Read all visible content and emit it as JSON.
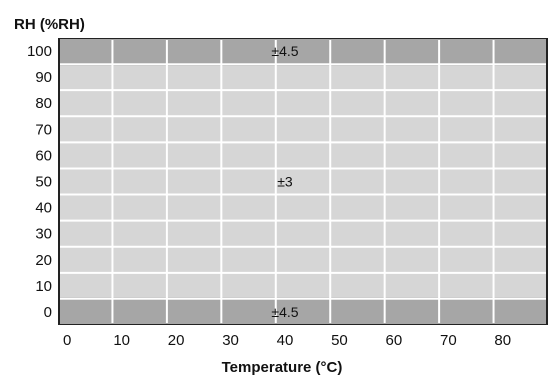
{
  "chart_data": {
    "type": "heatmap",
    "title": "",
    "ylabel": "RH (%RH)",
    "xlabel": "Temperature (°C)",
    "x_ticks": [
      "0",
      "10",
      "20",
      "30",
      "40",
      "50",
      "60",
      "70",
      "80"
    ],
    "y_ticks": [
      "100",
      "90",
      "80",
      "70",
      "60",
      "50",
      "40",
      "30",
      "20",
      "10",
      "0"
    ],
    "xlim": [
      0,
      80
    ],
    "ylim": [
      0,
      100
    ],
    "grid": true,
    "regions": [
      {
        "rh_range": [
          95,
          100
        ],
        "temp_range": [
          0,
          80
        ],
        "accuracy": "±4.5",
        "color": "#a6a6a6"
      },
      {
        "rh_range": [
          5,
          95
        ],
        "temp_range": [
          0,
          80
        ],
        "accuracy": "±3",
        "color": "#d6d6d6"
      },
      {
        "rh_range": [
          0,
          5
        ],
        "temp_range": [
          0,
          80
        ],
        "accuracy": "±4.5",
        "color": "#a6a6a6"
      }
    ],
    "annotations": [
      {
        "text": "±4.5",
        "x": 40,
        "y": 100
      },
      {
        "text": "±3",
        "x": 40,
        "y": 50
      },
      {
        "text": "±4.5",
        "x": 40,
        "y": 0
      }
    ]
  }
}
